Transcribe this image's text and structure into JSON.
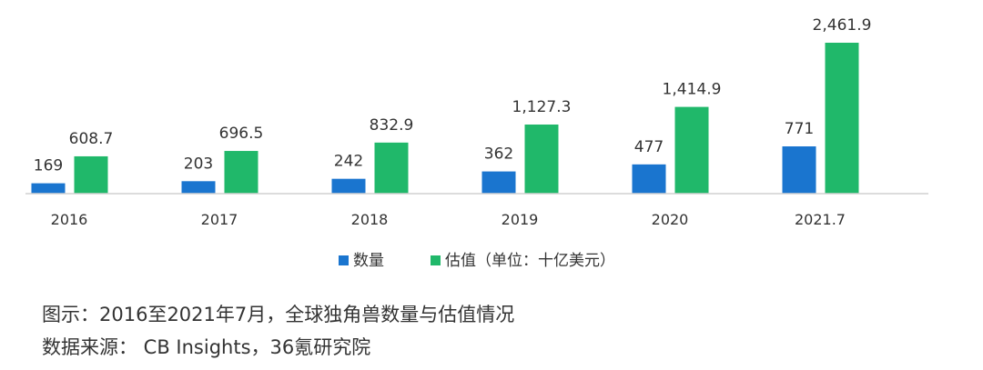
{
  "chart_data": {
    "type": "bar",
    "categories": [
      "2016",
      "2017",
      "2018",
      "2019",
      "2020",
      "2021.7"
    ],
    "series": [
      {
        "name": "数量",
        "values": [
          169,
          203,
          242,
          362,
          477,
          771
        ],
        "labels": [
          "169",
          "203",
          "242",
          "362",
          "477",
          "771"
        ],
        "color": "#1a75cf"
      },
      {
        "name": "估值（单位：十亿美元）",
        "values": [
          608.7,
          696.5,
          832.9,
          1127.3,
          1414.9,
          2461.9
        ],
        "labels": [
          "608.7",
          "696.5",
          "832.9",
          "1,127.3",
          "1,414.9",
          "2,461.9"
        ],
        "color": "#20b86a"
      }
    ],
    "ylim": [
      0,
      2461.9
    ],
    "grid": false,
    "legend_position": "bottom"
  },
  "captions": {
    "figure": "图示：2016至2021年7月，全球独角兽数量与估值情况",
    "source": "数据来源： CB Insights，36氪研究院"
  }
}
